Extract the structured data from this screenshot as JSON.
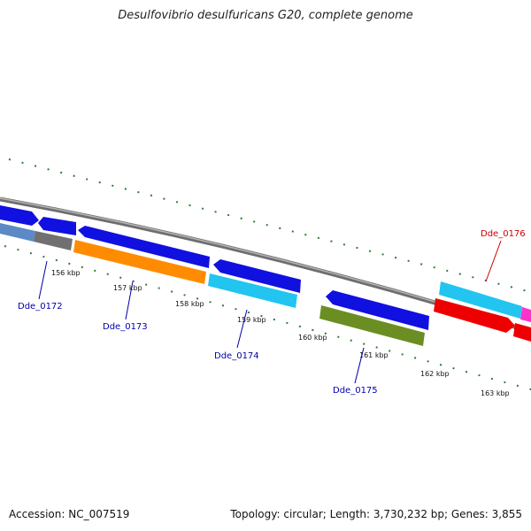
{
  "title": "Desulfovibrio desulfuricans G20, complete genome",
  "footer": {
    "accession": "Accession: NC_007519",
    "summary": "Topology: circular; Length: 3,730,232 bp; Genes: 3,855"
  },
  "colors": {
    "backbone": "#8a8a8a",
    "ticks": "#2e7d32",
    "label_blue": "#0000aa",
    "label_red": "#cc0000"
  },
  "scale_labels": [
    "156 kbp",
    "157 kbp",
    "158 kbp",
    "159 kbp",
    "160 kbp",
    "161 kbp",
    "162 kbp",
    "163 kbp"
  ],
  "gene_labels": [
    {
      "name": "Dde_0172",
      "color": "#0000aa"
    },
    {
      "name": "Dde_0173",
      "color": "#0000aa"
    },
    {
      "name": "Dde_0174",
      "color": "#0000aa"
    },
    {
      "name": "Dde_0175",
      "color": "#0000aa"
    },
    {
      "name": "Dde_0176",
      "color": "#cc0000"
    }
  ],
  "gene_colors": {
    "blue": "#1010e0",
    "steel": "#5b8ac6",
    "gray": "#707070",
    "orange": "#ff8c00",
    "cyan": "#22c4f0",
    "olive": "#6b8e23",
    "red": "#ee0000",
    "magenta": "#ff33cc"
  }
}
